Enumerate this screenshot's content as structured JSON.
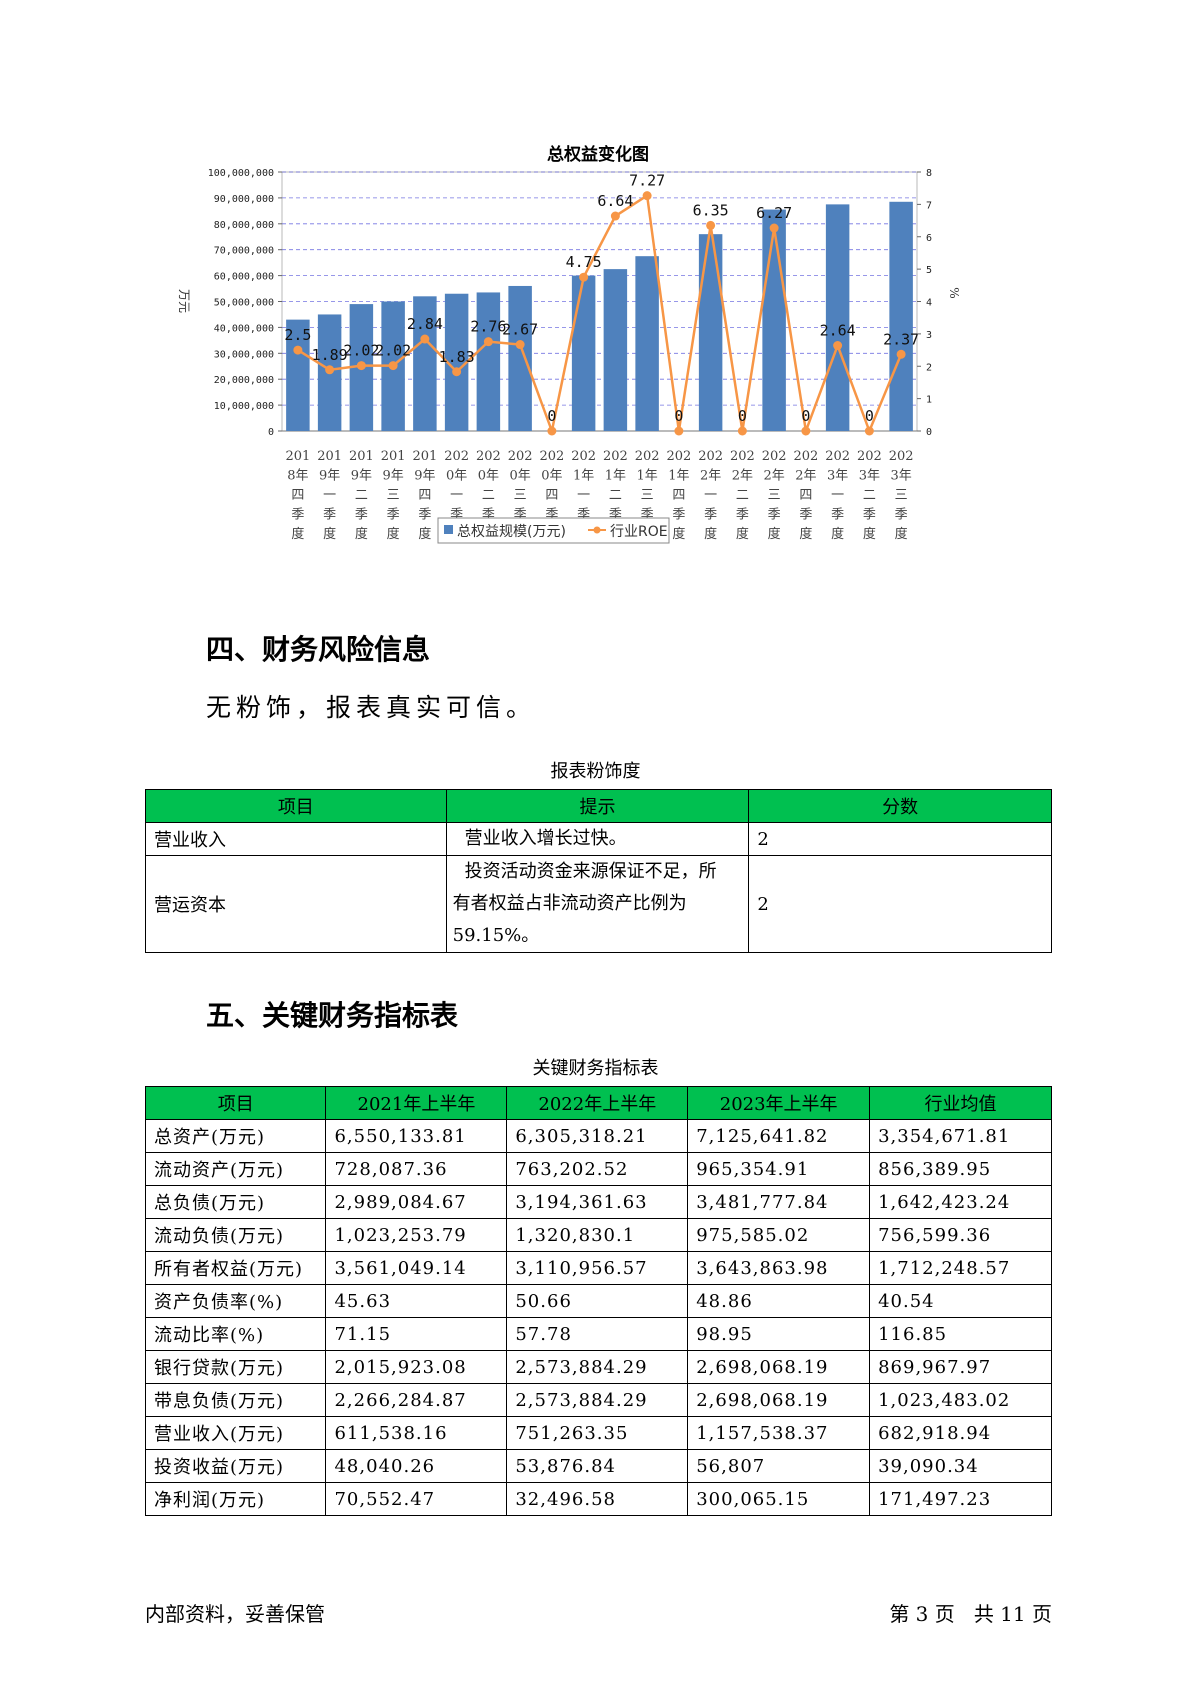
{
  "chart_data": {
    "type": "bar",
    "title": "总权益变化图",
    "ylabel": "万元",
    "y2label": "%",
    "ylim": [
      0,
      100000000
    ],
    "y2lim": [
      0,
      8
    ],
    "yticks": [
      "0",
      "10,000,000",
      "20,000,000",
      "30,000,000",
      "40,000,000",
      "50,000,000",
      "60,000,000",
      "70,000,000",
      "80,000,000",
      "90,000,000",
      "100,000,000"
    ],
    "y2ticks": [
      "0",
      "1",
      "2",
      "3",
      "4",
      "5",
      "6",
      "7",
      "8"
    ],
    "categories": [
      [
        "201",
        "8年",
        "四",
        "季",
        "度"
      ],
      [
        "201",
        "9年",
        "一",
        "季",
        "度"
      ],
      [
        "201",
        "9年",
        "二",
        "季",
        "度"
      ],
      [
        "201",
        "9年",
        "三",
        "季",
        "度"
      ],
      [
        "201",
        "9年",
        "四",
        "季",
        "度"
      ],
      [
        "202",
        "0年",
        "一",
        "季",
        "度"
      ],
      [
        "202",
        "0年",
        "二",
        "季",
        "度"
      ],
      [
        "202",
        "0年",
        "三",
        "季",
        "度"
      ],
      [
        "202",
        "0年",
        "四",
        "季",
        "度"
      ],
      [
        "202",
        "1年",
        "一",
        "季",
        "度"
      ],
      [
        "202",
        "1年",
        "二",
        "季",
        "度"
      ],
      [
        "202",
        "1年",
        "三",
        "季",
        "度"
      ],
      [
        "202",
        "1年",
        "四",
        "季",
        "度"
      ],
      [
        "202",
        "2年",
        "一",
        "季",
        "度"
      ],
      [
        "202",
        "2年",
        "二",
        "季",
        "度"
      ],
      [
        "202",
        "2年",
        "三",
        "季",
        "度"
      ],
      [
        "202",
        "2年",
        "四",
        "季",
        "度"
      ],
      [
        "202",
        "3年",
        "一",
        "季",
        "度"
      ],
      [
        "202",
        "3年",
        "二",
        "季",
        "度"
      ],
      [
        "202",
        "3年",
        "三",
        "季",
        "度"
      ]
    ],
    "series": [
      {
        "name": "总权益规模(万元)",
        "type": "bar",
        "color": "#4f81bd",
        "values": [
          43000000,
          45000000,
          49000000,
          50000000,
          52000000,
          53000000,
          53500000,
          56000000,
          null,
          60000000,
          62500000,
          67500000,
          null,
          76000000,
          null,
          85500000,
          null,
          87500000,
          null,
          88500000
        ]
      },
      {
        "name": "行业ROE",
        "type": "line",
        "color": "#f79646",
        "axis": "y2",
        "values": [
          2.5,
          1.89,
          2.02,
          2.02,
          2.84,
          1.83,
          2.76,
          2.67,
          0,
          4.75,
          6.64,
          7.27,
          0,
          6.35,
          0,
          6.27,
          0,
          2.64,
          0,
          2.37
        ],
        "labels": [
          "2.5",
          "1.89",
          "2.02",
          "2.02",
          "2.84",
          "1.83",
          "2.76",
          "2.67",
          "0",
          "4.75",
          "6.64",
          "7.27",
          "0",
          "6.35",
          "0",
          "6.27",
          "0",
          "2.64",
          "0",
          "2.37"
        ]
      }
    ],
    "grid": true,
    "legend_position": "bottom"
  },
  "section4": {
    "heading": "四、财务风险信息",
    "text": "无粉饰，报表真实可信。"
  },
  "risk_table": {
    "caption": "报表粉饰度",
    "headers": [
      "项目",
      "提示",
      "分数"
    ],
    "rows": [
      {
        "item": "营业收入",
        "hint_lines": [
          "营业收入增长过快。"
        ],
        "score": "2"
      },
      {
        "item": "营运资本",
        "hint_lines": [
          "投资活动资金来源保证不足，所",
          "有者权益占非流动资产比例为",
          "59.15%。"
        ],
        "score": "2"
      }
    ]
  },
  "section5": {
    "heading": "五、关键财务指标表"
  },
  "kpi_table": {
    "caption": "关键财务指标表",
    "headers": [
      "项目",
      "2021年上半年",
      "2022年上半年",
      "2023年上半年",
      "行业均值"
    ],
    "rows": [
      [
        "总资产(万元)",
        "6,550,133.81",
        "6,305,318.21",
        "7,125,641.82",
        "3,354,671.81"
      ],
      [
        "流动资产(万元)",
        "728,087.36",
        "763,202.52",
        "965,354.91",
        "856,389.95"
      ],
      [
        "总负债(万元)",
        "2,989,084.67",
        "3,194,361.63",
        "3,481,777.84",
        "1,642,423.24"
      ],
      [
        "流动负债(万元)",
        "1,023,253.79",
        "1,320,830.1",
        "975,585.02",
        "756,599.36"
      ],
      [
        "所有者权益(万元)",
        "3,561,049.14",
        "3,110,956.57",
        "3,643,863.98",
        "1,712,248.57"
      ],
      [
        "资产负债率(%)",
        "45.63",
        "50.66",
        "48.86",
        "40.54"
      ],
      [
        "流动比率(%)",
        "71.15",
        "57.78",
        "98.95",
        "116.85"
      ],
      [
        "银行贷款(万元)",
        "2,015,923.08",
        "2,573,884.29",
        "2,698,068.19",
        "869,967.97"
      ],
      [
        "带息负债(万元)",
        "2,266,284.87",
        "2,573,884.29",
        "2,698,068.19",
        "1,023,483.02"
      ],
      [
        "营业收入(万元)",
        "611,538.16",
        "751,263.35",
        "1,157,538.37",
        "682,918.94"
      ],
      [
        "投资收益(万元)",
        "48,040.26",
        "53,876.84",
        "56,807",
        "39,090.34"
      ],
      [
        "净利润(万元)",
        "70,552.47",
        "32,496.58",
        "300,065.15",
        "171,497.23"
      ]
    ]
  },
  "footer": {
    "left": "内部资料，妥善保管",
    "right": "第 3 页   共 11 页"
  }
}
